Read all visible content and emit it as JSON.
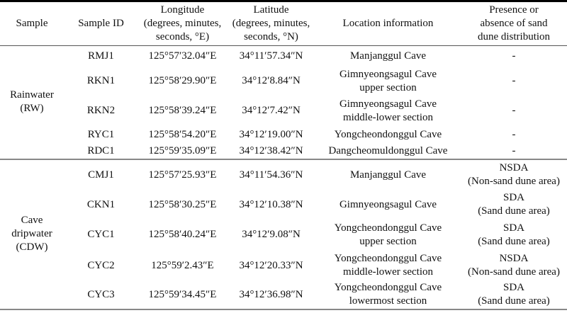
{
  "headers": [
    "Sample",
    "Sample ID",
    "Longitude (degrees, minutes, seconds, °E)",
    "Latitude (degrees, minutes, seconds, °N)",
    "Location information",
    "Presence or absence of sand dune distribution"
  ],
  "header_lines": [
    [
      "Sample"
    ],
    [
      "Sample ID"
    ],
    [
      "Longitude",
      "(degrees, minutes,",
      "seconds, °E)"
    ],
    [
      "Latitude",
      "(degrees, minutes,",
      "seconds, °N)"
    ],
    [
      "Location information"
    ],
    [
      "Presence or",
      "absence of sand",
      "dune distribution"
    ]
  ],
  "groups": [
    {
      "sample": [
        "Rainwater",
        "(RW)"
      ],
      "rows": [
        {
          "id": "RMJ1",
          "lon": "125°57′32.04″E",
          "lat": "34°11′57.34″N",
          "loc": [
            "Manjanggul Cave"
          ],
          "sand": [
            "-"
          ]
        },
        {
          "id": "RKN1",
          "lon": "125°58′29.90″E",
          "lat": "34°12′8.84″N",
          "loc": [
            "Gimnyeongsagul Cave",
            "upper section"
          ],
          "sand": [
            "-"
          ]
        },
        {
          "id": "RKN2",
          "lon": "125°58′39.24″E",
          "lat": "34°12′7.42″N",
          "loc": [
            "Gimnyeongsagul Cave",
            "middle-lower section"
          ],
          "sand": [
            "-"
          ]
        },
        {
          "id": "RYC1",
          "lon": "125°58′54.20″E",
          "lat": "34°12′19.00″N",
          "loc": [
            "Yongcheondonggul Cave"
          ],
          "sand": [
            "-"
          ]
        },
        {
          "id": "RDC1",
          "lon": "125°59′35.09″E",
          "lat": "34°12′38.42″N",
          "loc": [
            "Dangcheomuldonggul Cave"
          ],
          "sand": [
            "-"
          ]
        }
      ]
    },
    {
      "sample": [
        "Cave",
        "dripwater",
        "(CDW)"
      ],
      "rows": [
        {
          "id": "CMJ1",
          "lon": "125°57′25.93″E",
          "lat": "34°11′54.36″N",
          "loc": [
            "Manjanggul Cave"
          ],
          "sand": [
            "NSDA",
            "(Non-sand dune area)"
          ]
        },
        {
          "id": "CKN1",
          "lon": "125°58′30.25″E",
          "lat": "34°12′10.38″N",
          "loc": [
            "Gimnyeongsagul Cave"
          ],
          "sand": [
            "SDA",
            "(Sand dune area)"
          ]
        },
        {
          "id": "CYC1",
          "lon": "125°58′40.24″E",
          "lat": "34°12′9.08″N",
          "loc": [
            "Yongcheondonggul Cave",
            "upper section"
          ],
          "sand": [
            "SDA",
            "(Sand dune area)"
          ]
        },
        {
          "id": "CYC2",
          "lon": "125°59′2.43″E",
          "lat": "34°12′20.33″N",
          "loc": [
            "Yongcheondonggul Cave",
            "middle-lower section"
          ],
          "sand": [
            "NSDA",
            "(Non-sand dune area)"
          ]
        },
        {
          "id": "CYC3",
          "lon": "125°59′34.45″E",
          "lat": "34°12′36.98″N",
          "loc": [
            "Yongcheondonggul Cave",
            "lowermost section"
          ],
          "sand": [
            "SDA",
            "(Sand dune area)"
          ]
        }
      ]
    }
  ]
}
